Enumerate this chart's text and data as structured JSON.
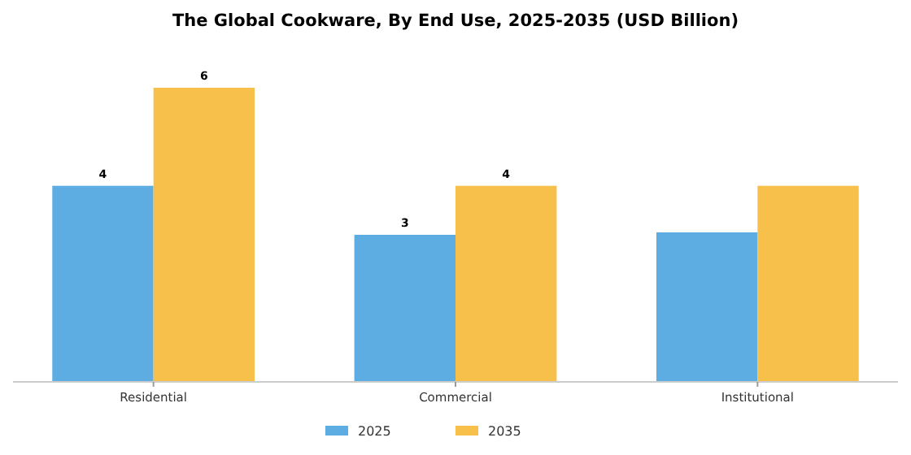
{
  "chart_data": {
    "type": "bar",
    "title": "The Global Cookware, By End Use, 2025-2035 (USD Billion)",
    "categories": [
      "Residential",
      "Commercial",
      "Institutional"
    ],
    "legend": "bottom",
    "series": [
      {
        "name": "2025",
        "color": "#5dade2",
        "values": [
          4,
          3,
          3.05
        ],
        "value_labels": [
          "4",
          "3",
          null
        ]
      },
      {
        "name": "2035",
        "color": "#f7c04a",
        "values": [
          6,
          4,
          4
        ],
        "value_labels": [
          "6",
          "4",
          null
        ]
      }
    ]
  }
}
